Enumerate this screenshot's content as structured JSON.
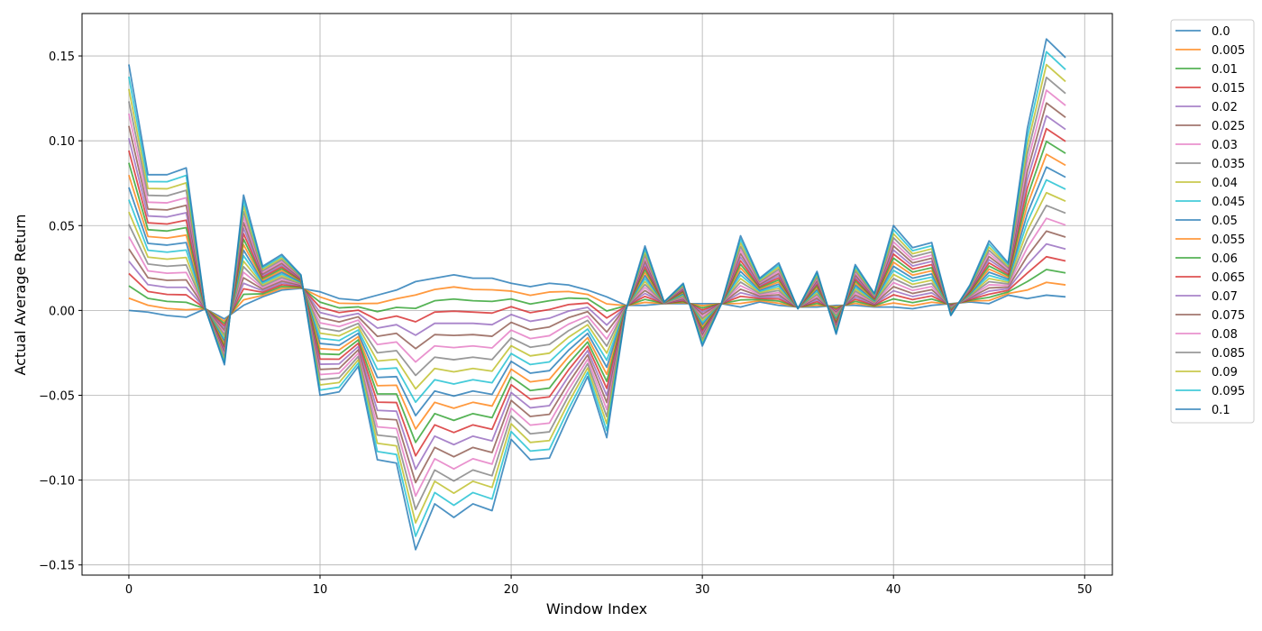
{
  "chart_data": {
    "type": "line",
    "xlabel": "Window Index",
    "ylabel": "Actual Average Return",
    "xlim": [
      -2.45,
      51.45
    ],
    "ylim": [
      -0.156,
      0.175
    ],
    "xticks": [
      0,
      10,
      20,
      30,
      40,
      50
    ],
    "xtick_labels": [
      "0",
      "10",
      "20",
      "30",
      "40",
      "50"
    ],
    "yticks": [
      -0.15,
      -0.1,
      -0.05,
      0.0,
      0.05,
      0.1,
      0.15
    ],
    "ytick_labels": [
      "−0.15",
      "−0.10",
      "−0.05",
      "0.00",
      "0.05",
      "0.10",
      "0.15"
    ],
    "grid": true,
    "legend_position": "outside-right",
    "x": [
      0,
      1,
      2,
      3,
      4,
      5,
      6,
      7,
      8,
      9,
      10,
      11,
      12,
      13,
      14,
      15,
      16,
      17,
      18,
      19,
      20,
      21,
      22,
      23,
      24,
      25,
      26,
      27,
      28,
      29,
      30,
      31,
      32,
      33,
      34,
      35,
      36,
      37,
      38,
      39,
      40,
      41,
      42,
      43,
      44,
      45,
      46,
      47,
      48,
      49
    ],
    "series_low": {
      "name": "0.0",
      "values": [
        0.0,
        -0.001,
        -0.003,
        -0.004,
        0.001,
        -0.005,
        0.003,
        0.008,
        0.012,
        0.013,
        0.011,
        0.007,
        0.006,
        0.009,
        0.012,
        0.017,
        0.019,
        0.021,
        0.019,
        0.019,
        0.016,
        0.014,
        0.016,
        0.015,
        0.012,
        0.008,
        0.003,
        0.003,
        0.004,
        0.004,
        0.004,
        0.004,
        0.002,
        0.005,
        0.003,
        0.002,
        0.002,
        0.003,
        0.003,
        0.002,
        0.002,
        0.001,
        0.003,
        0.004,
        0.005,
        0.004,
        0.009,
        0.007,
        0.009,
        0.008
      ]
    },
    "series_high": {
      "name": "0.1",
      "values": [
        0.145,
        0.08,
        0.08,
        0.084,
        0.001,
        -0.032,
        0.068,
        0.026,
        0.033,
        0.021,
        -0.05,
        -0.048,
        -0.033,
        -0.088,
        -0.09,
        -0.141,
        -0.114,
        -0.122,
        -0.114,
        -0.118,
        -0.076,
        -0.088,
        -0.087,
        -0.062,
        -0.039,
        -0.075,
        0.0,
        0.038,
        0.005,
        0.016,
        -0.021,
        0.004,
        0.044,
        0.019,
        0.028,
        0.001,
        0.023,
        -0.014,
        0.027,
        0.01,
        0.05,
        0.037,
        0.04,
        -0.003,
        0.015,
        0.041,
        0.028,
        0.107,
        0.16,
        0.149
      ]
    },
    "series": [
      {
        "name": "0.0",
        "color": "#1f77b4"
      },
      {
        "name": "0.005",
        "color": "#ff7f0e"
      },
      {
        "name": "0.01",
        "color": "#2ca02c"
      },
      {
        "name": "0.015",
        "color": "#d62728"
      },
      {
        "name": "0.02",
        "color": "#9467bd"
      },
      {
        "name": "0.025",
        "color": "#8c564b"
      },
      {
        "name": "0.03",
        "color": "#e377c2"
      },
      {
        "name": "0.035",
        "color": "#7f7f7f"
      },
      {
        "name": "0.04",
        "color": "#bcbd22"
      },
      {
        "name": "0.045",
        "color": "#17becf"
      },
      {
        "name": "0.05",
        "color": "#1f77b4"
      },
      {
        "name": "0.055",
        "color": "#ff7f0e"
      },
      {
        "name": "0.06",
        "color": "#2ca02c"
      },
      {
        "name": "0.065",
        "color": "#d62728"
      },
      {
        "name": "0.07",
        "color": "#9467bd"
      },
      {
        "name": "0.075",
        "color": "#8c564b"
      },
      {
        "name": "0.08",
        "color": "#e377c2"
      },
      {
        "name": "0.085",
        "color": "#7f7f7f"
      },
      {
        "name": "0.09",
        "color": "#bcbd22"
      },
      {
        "name": "0.095",
        "color": "#17becf"
      },
      {
        "name": "0.1",
        "color": "#1f77b4"
      }
    ]
  }
}
